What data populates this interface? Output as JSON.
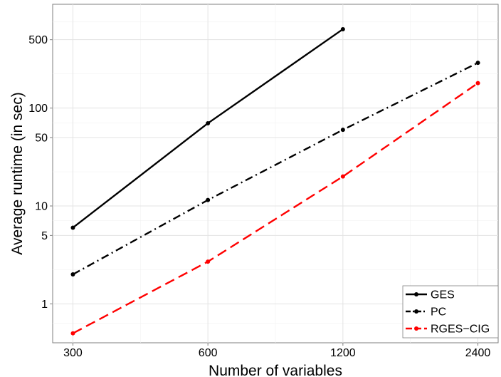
{
  "chart_data": {
    "type": "line",
    "xlabel": "Number of variables",
    "ylabel": "Average runtime (in sec)",
    "x_scale": "log2",
    "y_scale": "log10",
    "x_ticks": [
      300,
      600,
      1200,
      2400
    ],
    "y_ticks": [
      1,
      5,
      10,
      50,
      100,
      500
    ],
    "ylim": [
      0.4,
      1150
    ],
    "grid": true,
    "legend_position": "bottom-right",
    "series": [
      {
        "name": "GES",
        "x": [
          300,
          600,
          1200
        ],
        "values": [
          6,
          70,
          640
        ],
        "color": "#000000",
        "dash": "solid"
      },
      {
        "name": "PC",
        "x": [
          300,
          600,
          1200,
          2400
        ],
        "values": [
          2,
          11.5,
          60,
          290
        ],
        "color": "#000000",
        "dash": "dashdot"
      },
      {
        "name": "RGES−CIG",
        "x": [
          300,
          600,
          1200,
          2400
        ],
        "values": [
          0.5,
          2.7,
          20,
          180
        ],
        "color": "#ff0000",
        "dash": "longdash"
      }
    ]
  }
}
